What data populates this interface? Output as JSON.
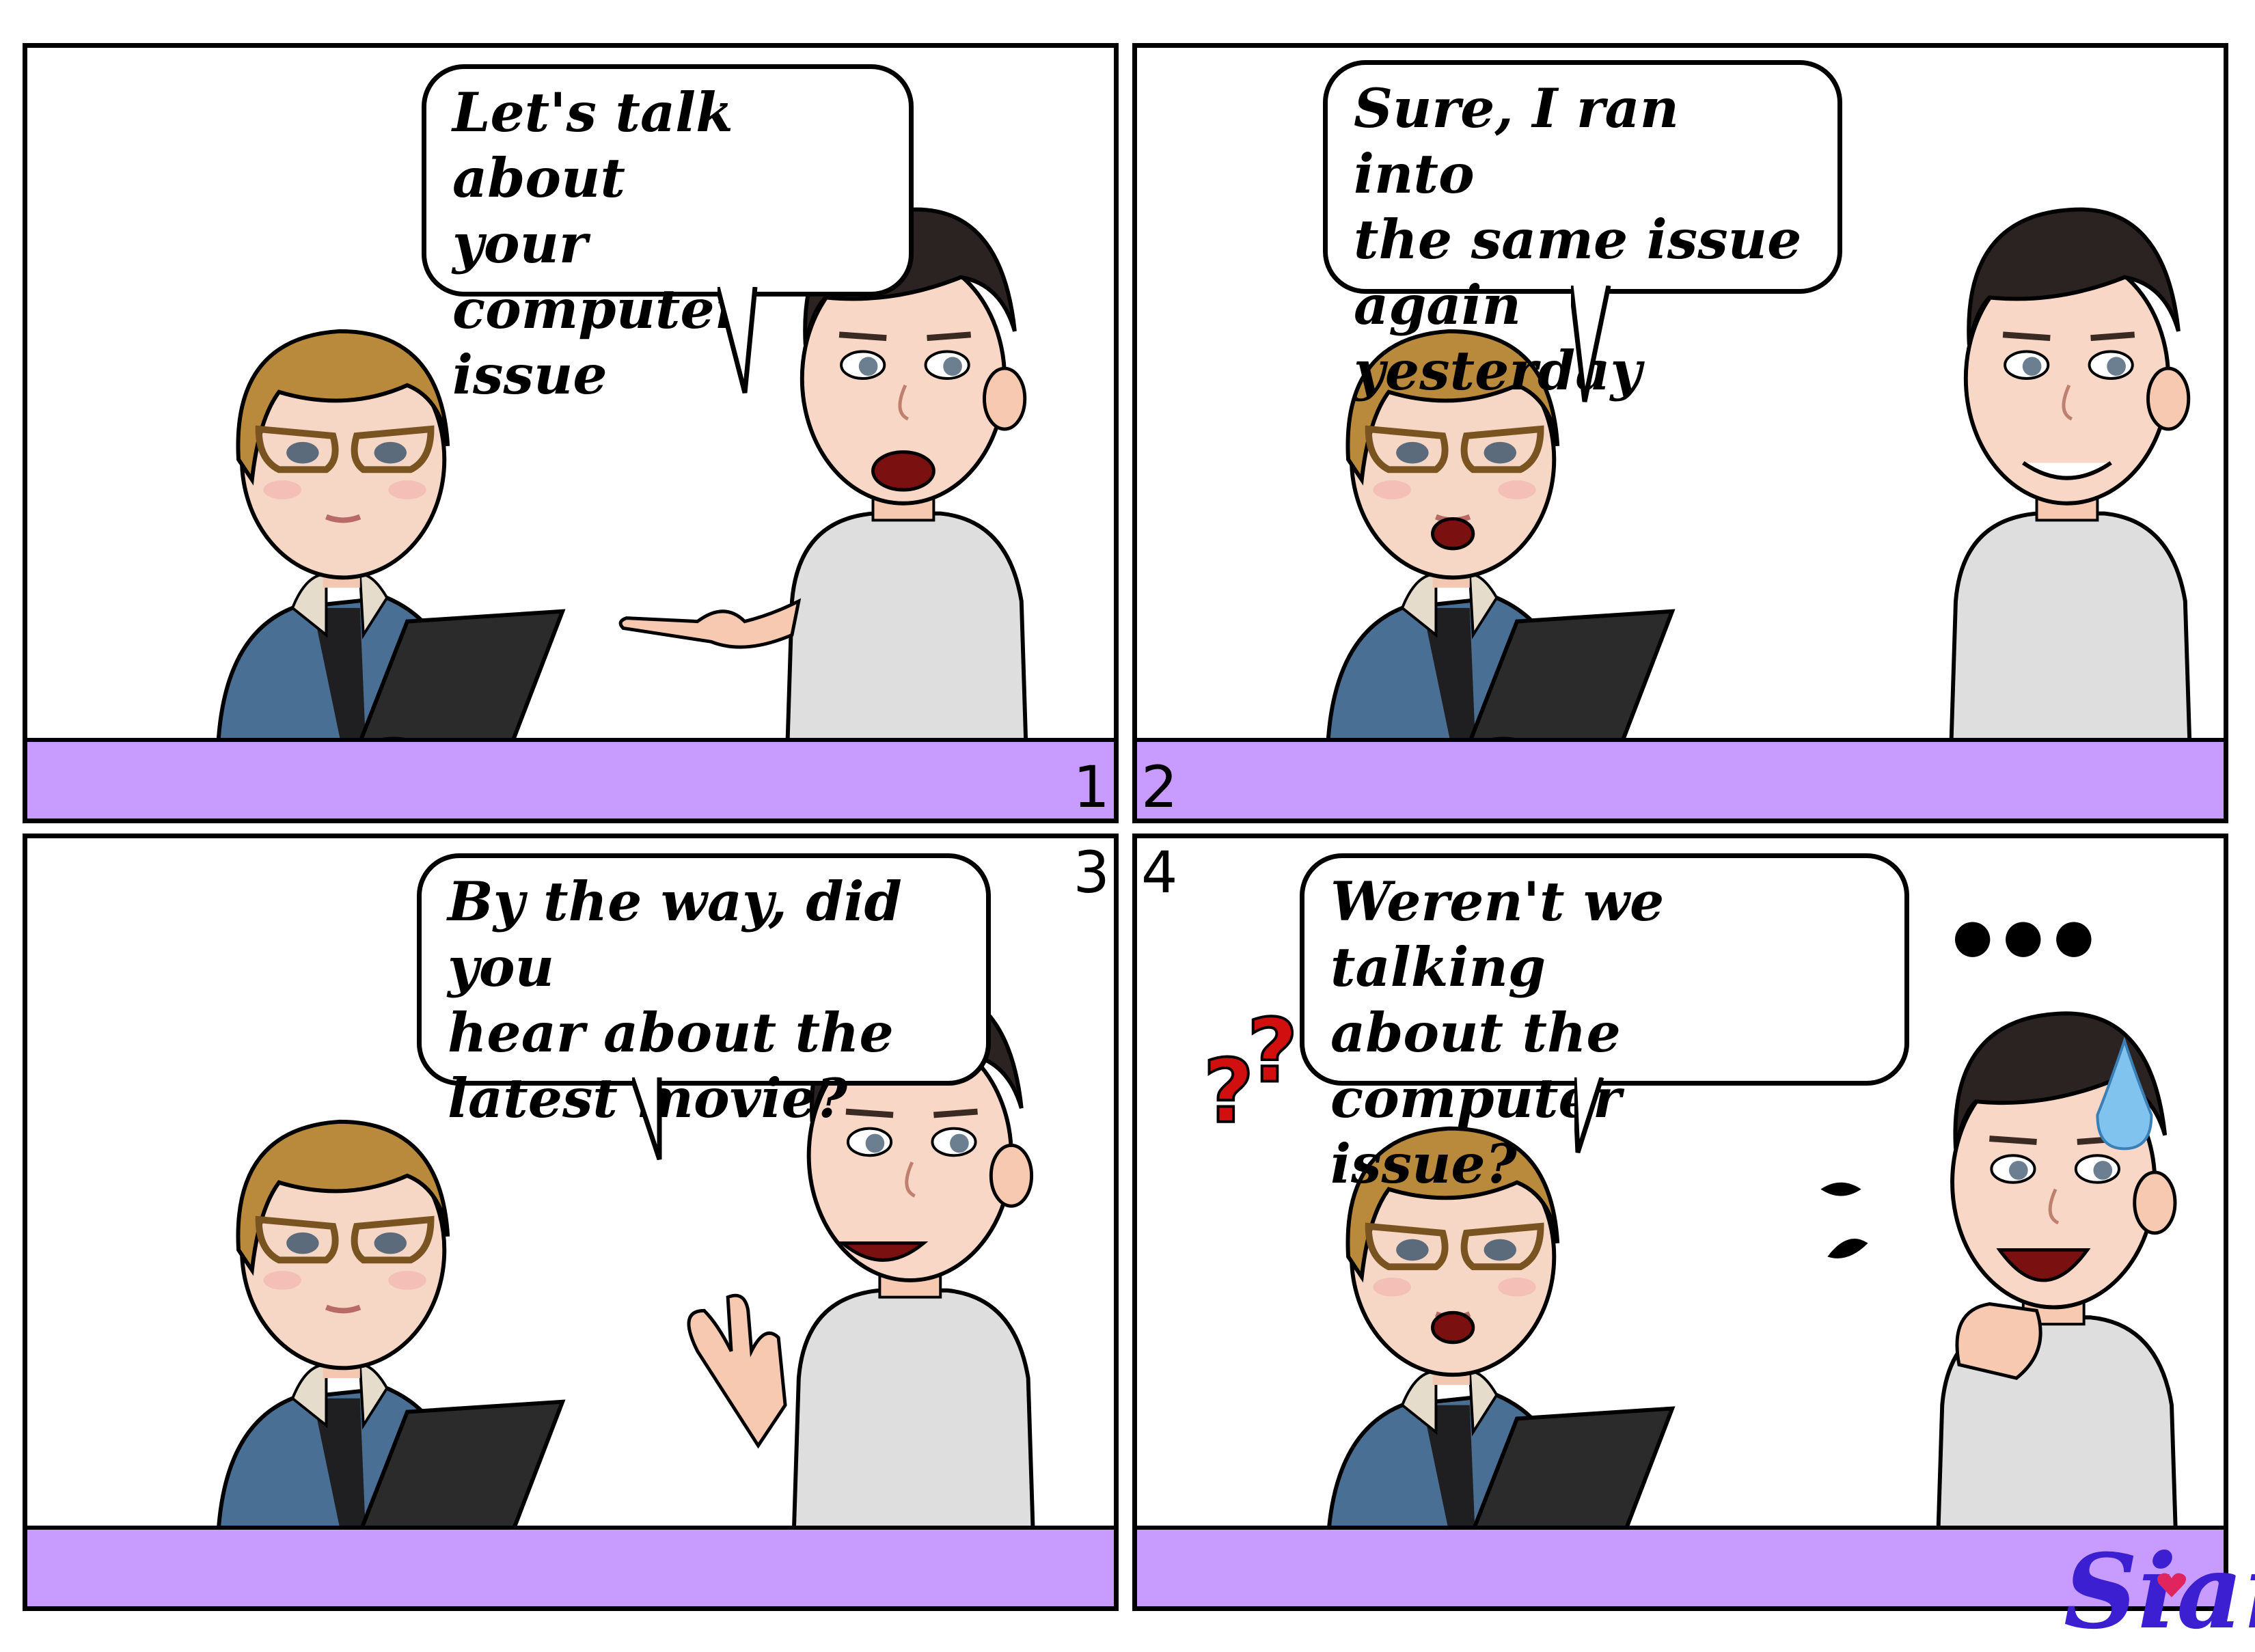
{
  "panels": [
    {
      "number": "1",
      "speech": "Let's talk about\nyour computer\nissue"
    },
    {
      "number": "2",
      "speech": "Sure, I ran into\nthe same issue\nagain yesterday"
    },
    {
      "number": "3",
      "speech": "By the way, did you\nhear about the\nlatest movie?"
    },
    {
      "number": "4",
      "speech": "Weren't we talking\nabout the computer\nissue?"
    }
  ],
  "signature": "Sian",
  "colors": {
    "desk": "#c79bff",
    "ink": "#000000",
    "signature": "#3b1fd1",
    "jacket": "#4a6f95",
    "shirt": "#dedede",
    "hair_woman": "#b98a3c",
    "hair_man": "#2b2222",
    "skin": "#f6c9b0",
    "laptop": "#2b2b2b",
    "question_mark": "#d10f0f",
    "sweat_drop": "#7fc3ee"
  }
}
